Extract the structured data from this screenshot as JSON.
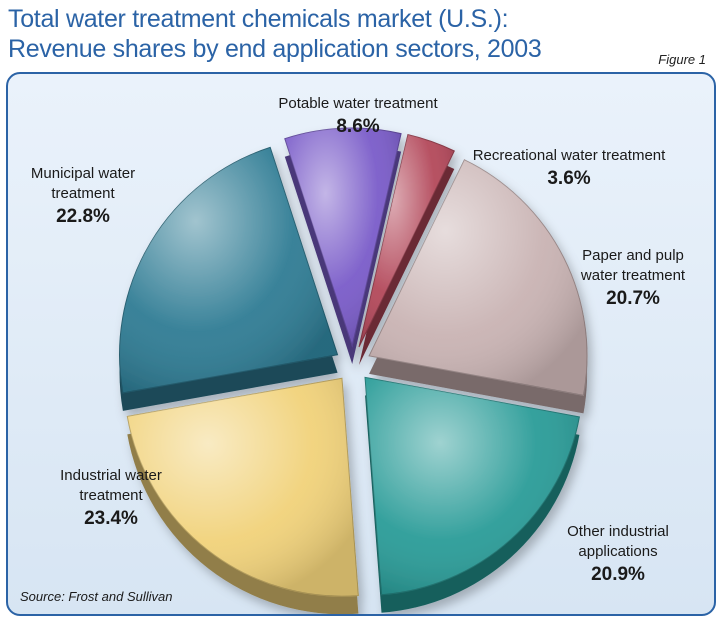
{
  "title": "Total water treatment chemicals market (U.S.): Revenue shares by end application sectors, 2003",
  "figure_label": "Figure 1",
  "source": "Source: Frost and Sullivan",
  "chart_data": {
    "type": "pie",
    "title": "Total water treatment chemicals market (U.S.): Revenue shares by end application sectors, 2003",
    "slices": [
      {
        "label": "Potable water treatment",
        "value": 8.6,
        "value_label": "8.6%",
        "color": "#7a5cc9"
      },
      {
        "label": "Recreational water treatment",
        "value": 3.6,
        "value_label": "3.6%",
        "color": "#b3485a"
      },
      {
        "label": "Paper and pulp water treatment",
        "value": 20.7,
        "value_label": "20.7%",
        "color": "#c9b3b3"
      },
      {
        "label": "Other industrial applications",
        "value": 20.9,
        "value_label": "20.9%",
        "color": "#2a9c98"
      },
      {
        "label": "Industrial water treatment",
        "value": 23.4,
        "value_label": "23.4%",
        "color": "#f1d27a"
      },
      {
        "label": "Municipal water treatment",
        "value": 22.8,
        "value_label": "22.8%",
        "color": "#2f7c94"
      }
    ],
    "legend": "none",
    "start_angle_deg": -18
  }
}
